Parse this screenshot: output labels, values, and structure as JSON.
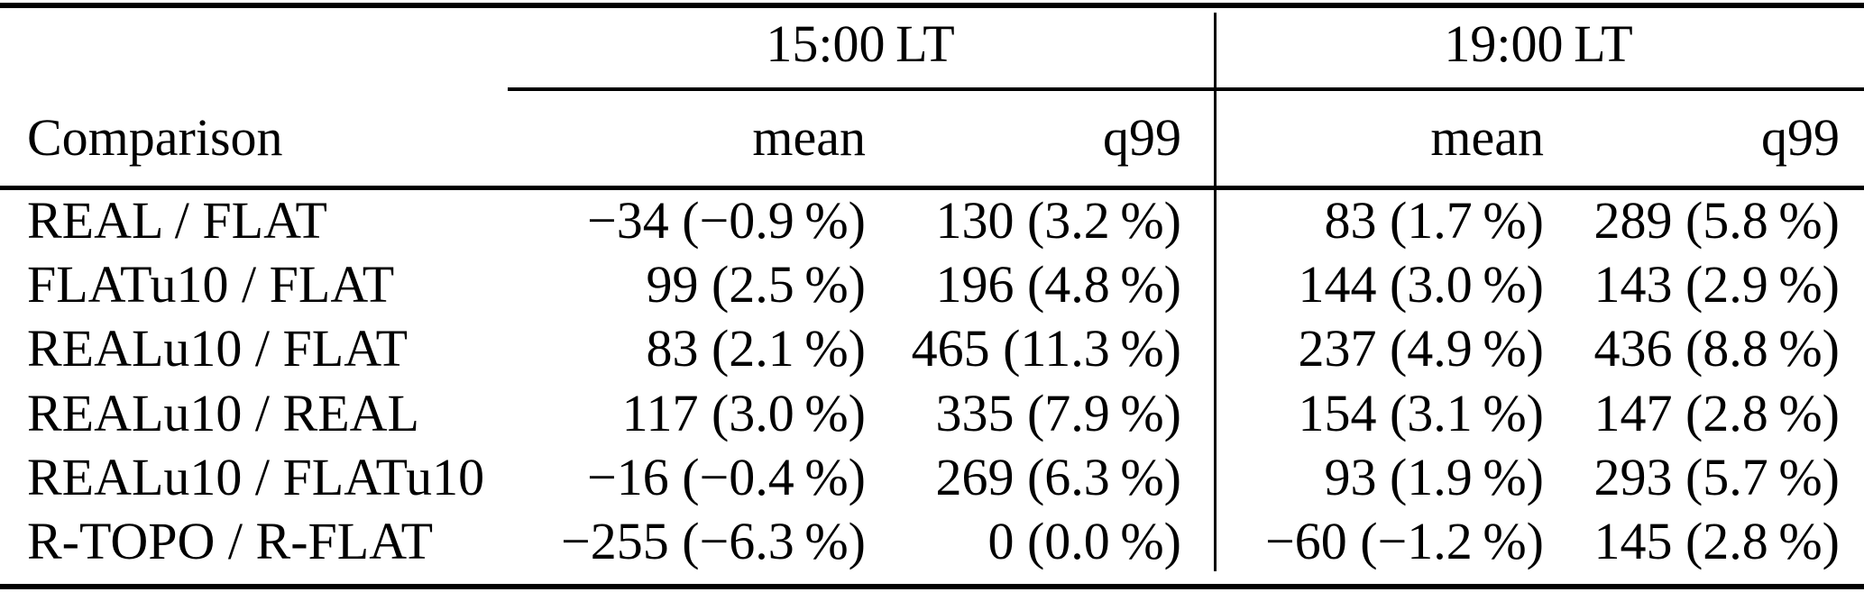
{
  "page": {
    "background_color": "#ffffff",
    "text_color": "#000000",
    "rule_color": "#000000"
  },
  "table": {
    "row_header_label": "Comparison",
    "time_groups": [
      {
        "label": "15:00 LT",
        "columns": [
          "mean",
          "q99"
        ]
      },
      {
        "label": "19:00 LT",
        "columns": [
          "mean",
          "q99"
        ]
      }
    ],
    "rows": [
      {
        "label": "REAL / FLAT",
        "mean_1500": "−34 (−0.9 %)",
        "q99_1500": "130 (3.2 %)",
        "mean_1900": "83 (1.7 %)",
        "q99_1900": "289 (5.8 %)"
      },
      {
        "label": "FLATu10 / FLAT",
        "mean_1500": "99 (2.5 %)",
        "q99_1500": "196 (4.8 %)",
        "mean_1900": "144 (3.0 %)",
        "q99_1900": "143 (2.9 %)"
      },
      {
        "label": "REALu10 / FLAT",
        "mean_1500": "83 (2.1 %)",
        "q99_1500": "465 (11.3 %)",
        "mean_1900": "237 (4.9 %)",
        "q99_1900": "436 (8.8 %)"
      },
      {
        "label": "REALu10 / REAL",
        "mean_1500": "117 (3.0 %)",
        "q99_1500": "335 (7.9 %)",
        "mean_1900": "154 (3.1 %)",
        "q99_1900": "147 (2.8 %)"
      },
      {
        "label": "REALu10 / FLATu10",
        "mean_1500": "−16 (−0.4 %)",
        "q99_1500": "269 (6.3 %)",
        "mean_1900": "93 (1.9 %)",
        "q99_1900": "293 (5.7 %)"
      },
      {
        "label": "R-TOPO / R-FLAT",
        "mean_1500": "−255 (−6.3 %)",
        "q99_1500": "0 (0.0 %)",
        "mean_1900": "−60 (−1.2 %)",
        "q99_1900": "145 (2.8 %)"
      }
    ]
  }
}
